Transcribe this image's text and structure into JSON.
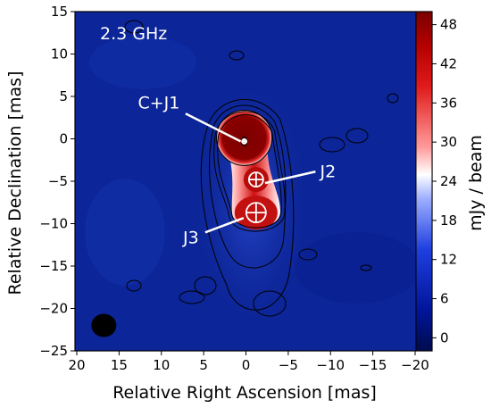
{
  "chart_data": {
    "type": "heatmap",
    "title": "2.3 GHz",
    "xlabel": "Relative Right Ascension [mas]",
    "ylabel": "Relative Declination [mas]",
    "xlim": [
      20,
      -22
    ],
    "ylim": [
      -25,
      15
    ],
    "x_ticks": [
      20,
      15,
      10,
      5,
      0,
      -5,
      -10,
      -15,
      -20
    ],
    "x_tick_labels": [
      "20",
      "15",
      "10",
      "5",
      "0",
      "−5",
      "−10",
      "−15",
      "−20"
    ],
    "y_ticks": [
      15,
      10,
      5,
      0,
      -5,
      -10,
      -15,
      -20,
      -25
    ],
    "y_tick_labels": [
      "15",
      "10",
      "5",
      "0",
      "−5",
      "−10",
      "−15",
      "−20",
      "−25"
    ],
    "colorbar": {
      "label": "mJy / beam",
      "range": [
        -2,
        50
      ],
      "ticks": [
        0,
        6,
        12,
        18,
        24,
        30,
        36,
        42,
        48
      ],
      "tick_labels": [
        "0",
        "6",
        "12",
        "18",
        "24",
        "30",
        "36",
        "42",
        "48"
      ],
      "colormap": "seismic"
    },
    "components": [
      {
        "name": "C+J1",
        "x": 0.2,
        "y": -0.3
      },
      {
        "name": "J2",
        "x": -1.2,
        "y": -4.8
      },
      {
        "name": "J3",
        "x": -1.2,
        "y": -8.7
      }
    ],
    "annotations": [
      {
        "text": "C+J1",
        "x": 10.3,
        "y": 3.6
      },
      {
        "text": "J2",
        "x": -9.7,
        "y": -4.5
      },
      {
        "text": "J3",
        "x": 6.5,
        "y": -12.3
      }
    ],
    "beam": {
      "x": 16.8,
      "y": -22
    }
  },
  "colors": {
    "background_low": "#0b2496",
    "peak": "#7a0000",
    "contour": "#000000",
    "annotation": "#ffffff"
  }
}
